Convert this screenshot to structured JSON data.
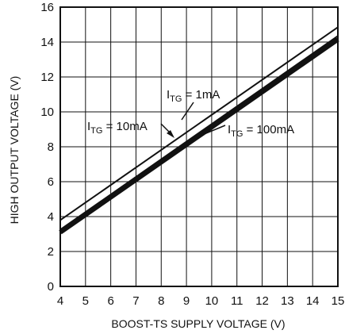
{
  "chart_data": {
    "type": "line",
    "xlabel": "BOOST-TS SUPPLY VOLTAGE (V)",
    "ylabel": "HIGH OUTPUT VOLTAGE (V)",
    "xlim": [
      4,
      15
    ],
    "ylim": [
      0,
      16
    ],
    "x_ticks": [
      "4",
      "5",
      "6",
      "7",
      "8",
      "9",
      "10",
      "11",
      "12",
      "13",
      "14",
      "15"
    ],
    "y_ticks": [
      "0",
      "2",
      "4",
      "6",
      "8",
      "10",
      "12",
      "14",
      "16"
    ],
    "grid": true,
    "series": [
      {
        "name": "I_TG = 1mA",
        "x": [
          4,
          15
        ],
        "y": [
          3.8,
          14.85
        ]
      },
      {
        "name": "I_TG = 10mA",
        "x": [
          4,
          15
        ],
        "y": [
          3.25,
          14.35
        ]
      },
      {
        "name": "I_TG = 100mA",
        "x": [
          4,
          15
        ],
        "y": [
          3.1,
          14.15
        ]
      }
    ],
    "annotations": [
      {
        "base": "I",
        "sub": "TG",
        "rest": " = 1mA"
      },
      {
        "base": "I",
        "sub": "TG",
        "rest": " = 10mA"
      },
      {
        "base": "I",
        "sub": "TG",
        "rest": " = 100mA"
      }
    ]
  }
}
